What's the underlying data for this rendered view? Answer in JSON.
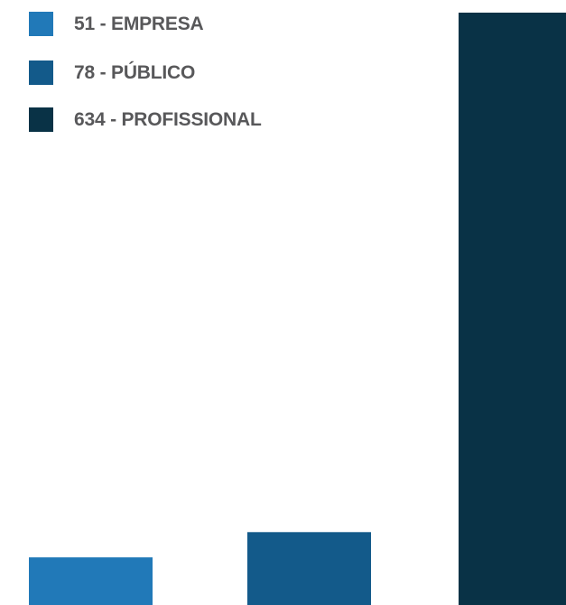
{
  "chart_data": {
    "type": "bar",
    "categories": [
      "EMPRESA",
      "PÚBLICO",
      "PROFISSIONAL"
    ],
    "values": [
      51,
      78,
      634
    ],
    "colors": [
      "#2179b8",
      "#135a8a",
      "#093246"
    ],
    "legend_labels": [
      "51 - EMPRESA",
      "78 - PÚBLICO",
      "634 - PROFISSIONAL"
    ],
    "legend_position": "top-left",
    "grid": false,
    "ylim": [
      0,
      634
    ]
  }
}
